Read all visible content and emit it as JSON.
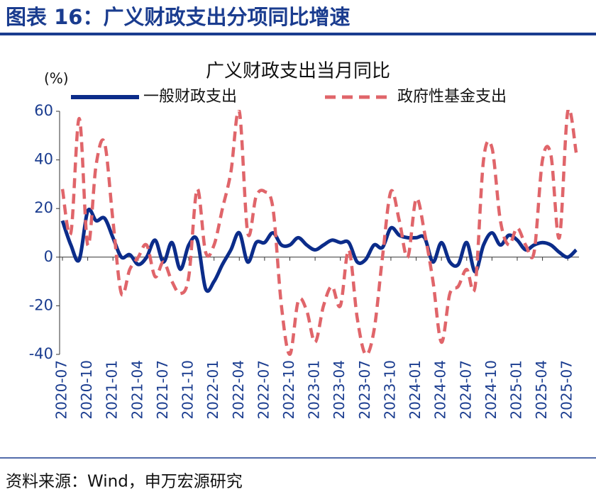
{
  "header": {
    "title": "图表 16：广义财政支出分项同比增速"
  },
  "footer": {
    "source": "资料来源：Wind，申万宏源研究"
  },
  "chart_data": {
    "type": "line",
    "title": "广义财政支出当月同比",
    "y_label": "(%)",
    "categories": [
      "2020-07",
      null,
      null,
      "2020-10",
      null,
      null,
      "2021-01",
      null,
      null,
      "2021-04",
      null,
      null,
      "2021-07",
      null,
      null,
      "2021-10",
      null,
      null,
      "2022-01",
      null,
      null,
      "2022-04",
      null,
      null,
      "2022-07",
      null,
      null,
      "2022-10",
      null,
      null,
      "2023-01",
      null,
      null,
      "2023-04",
      null,
      null,
      "2023-07",
      null,
      null,
      "2023-10",
      null,
      null,
      "2024-01",
      null,
      null,
      "2024-04",
      null,
      null,
      "2024-07",
      null,
      null,
      "2024-10",
      null,
      null,
      "2025-01",
      null,
      null,
      "2025-04",
      null,
      null,
      "2025-07",
      null
    ],
    "series": [
      {
        "name": "一般财政支出",
        "color": "#0b2c8a",
        "dash": false,
        "values": [
          15,
          5,
          -1,
          19,
          15,
          16,
          8,
          0,
          1,
          -3,
          0,
          7,
          -2,
          6,
          -5,
          5,
          7,
          -13,
          -10,
          -3,
          3,
          10,
          -2,
          6,
          6,
          10,
          5,
          5,
          8,
          5,
          3,
          5,
          7,
          6,
          6,
          -2,
          -1,
          5,
          4,
          12,
          9,
          8,
          8,
          8,
          -2,
          6,
          -2,
          -3,
          6,
          -6,
          5,
          10,
          5,
          9,
          7,
          3,
          5,
          6,
          5,
          2,
          0,
          3
        ]
      },
      {
        "name": "政府性基金支出",
        "color": "#e0656a",
        "dash": true,
        "values": [
          28,
          10,
          57,
          5,
          38,
          47,
          15,
          -15,
          -5,
          0,
          5,
          -8,
          -2,
          -10,
          -15,
          -8,
          28,
          2,
          5,
          20,
          35,
          60,
          10,
          25,
          27,
          20,
          -20,
          -40,
          -18,
          -22,
          -35,
          -20,
          -12,
          -20,
          3,
          -25,
          -40,
          -30,
          0,
          27,
          15,
          0,
          24,
          10,
          -10,
          -35,
          -15,
          -12,
          -5,
          -12,
          40,
          45,
          15,
          5,
          12,
          5,
          2,
          40,
          42,
          8,
          60,
          43
        ]
      }
    ],
    "ylim": [
      -40,
      60
    ],
    "yticks": [
      -40,
      -20,
      0,
      20,
      40,
      60
    ]
  }
}
